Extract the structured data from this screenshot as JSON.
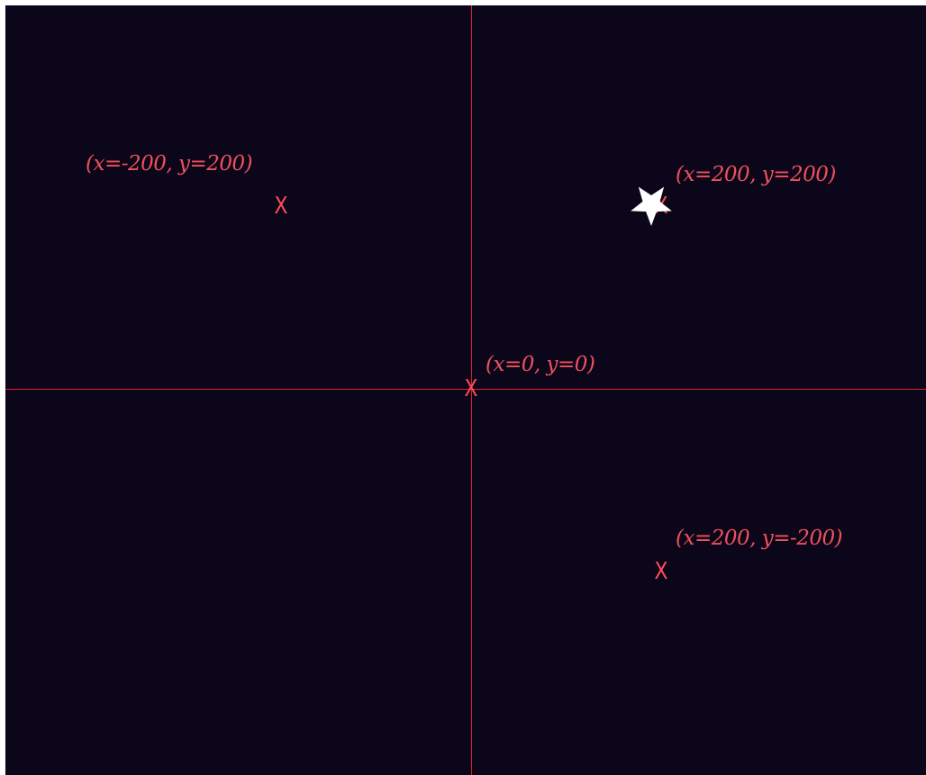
{
  "canvas": {
    "background": "#0b0619",
    "axis_color": "#e01f2a",
    "marker_color": "#ff4c59",
    "label_color": "#f0505c"
  },
  "markers": [
    {
      "symbol": "X",
      "label": "(x=-200, y=200)",
      "x": -200,
      "y": 200
    },
    {
      "symbol": "X",
      "label": "(x=200, y=200)",
      "x": 200,
      "y": 200
    },
    {
      "symbol": "X",
      "label": "(x=0, y=0)",
      "x": 0,
      "y": 0
    },
    {
      "symbol": "X",
      "label": "(x=200, y=-200)",
      "x": 200,
      "y": -200
    }
  ],
  "sprite": {
    "icon": "star-sprite-icon",
    "color": "#ffffff",
    "x": 190,
    "y": 200
  }
}
